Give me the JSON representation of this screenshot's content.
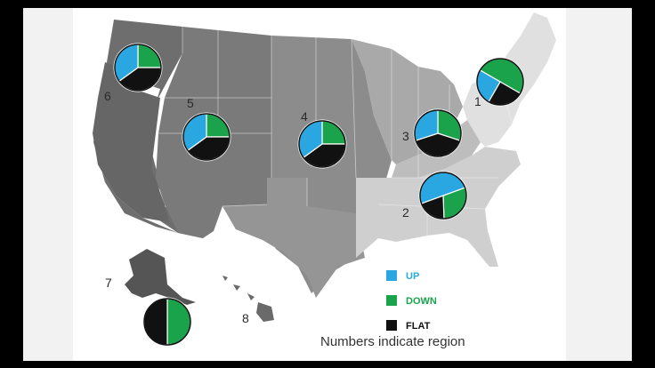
{
  "legend": {
    "up": {
      "label": "UP",
      "color": "#2aa7e0"
    },
    "down": {
      "label": "DOWN",
      "color": "#1aa34a"
    },
    "flat": {
      "label": "FLAT",
      "color": "#111111"
    }
  },
  "caption": "Numbers indicate region",
  "regions": [
    {
      "id": "1",
      "label": "1",
      "up": 25,
      "down": 50,
      "flat": 25
    },
    {
      "id": "2",
      "label": "2",
      "up": 50,
      "down": 30,
      "flat": 20
    },
    {
      "id": "3",
      "label": "3",
      "up": 30,
      "down": 30,
      "flat": 40
    },
    {
      "id": "4",
      "label": "4",
      "up": 35,
      "down": 25,
      "flat": 40
    },
    {
      "id": "5",
      "label": "5",
      "up": 35,
      "down": 25,
      "flat": 40
    },
    {
      "id": "6",
      "label": "6",
      "up": 35,
      "down": 25,
      "flat": 40
    },
    {
      "id": "7",
      "label": "7",
      "up": 0,
      "down": 50,
      "flat": 50
    },
    {
      "id": "8",
      "label": "8"
    }
  ]
}
